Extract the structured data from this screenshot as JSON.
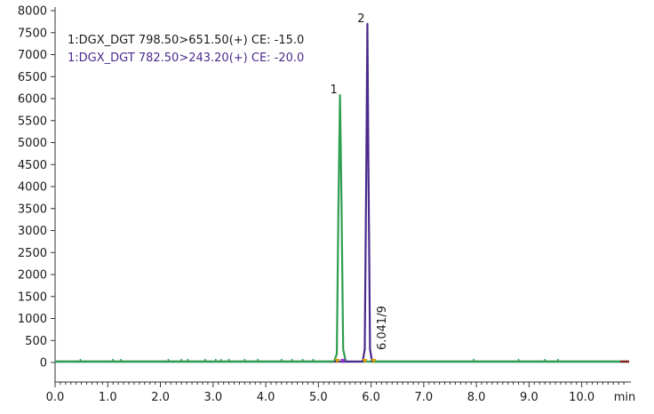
{
  "chart_data": {
    "type": "line",
    "xlabel": "min",
    "ylabel": "",
    "xlim": [
      0.0,
      10.9
    ],
    "ylim": [
      0,
      8000
    ],
    "x_ticks": [
      "0.0",
      "1.0",
      "2.0",
      "3.0",
      "4.0",
      "5.0",
      "6.0",
      "7.0",
      "8.0",
      "9.0",
      "10.0"
    ],
    "y_ticks": [
      "0",
      "500",
      "1000",
      "1500",
      "2000",
      "2500",
      "3000",
      "3500",
      "4000",
      "4500",
      "5000",
      "5500",
      "6000",
      "6500",
      "7000",
      "7500",
      "8000"
    ],
    "grid": false,
    "legend_position": "top-left",
    "series": [
      {
        "name": "1:DGX_DGT 798.50>651.50(+) CE: -15.0",
        "color": "#2e9e4f",
        "points": [
          [
            0.0,
            20
          ],
          [
            5.3,
            20
          ],
          [
            5.35,
            200
          ],
          [
            5.38,
            3500
          ],
          [
            5.41,
            6080
          ],
          [
            5.44,
            3500
          ],
          [
            5.47,
            300
          ],
          [
            5.52,
            20
          ],
          [
            10.9,
            20
          ]
        ]
      },
      {
        "name": "1:DGX_DGT 782.50>243.20(+) CE: -20.0",
        "color": "#4a2a8c",
        "points": [
          [
            0.0,
            20
          ],
          [
            5.84,
            20
          ],
          [
            5.88,
            300
          ],
          [
            5.91,
            4500
          ],
          [
            5.93,
            7700
          ],
          [
            5.95,
            4500
          ],
          [
            5.98,
            300
          ],
          [
            6.02,
            20
          ],
          [
            10.9,
            20
          ]
        ]
      }
    ],
    "peak_labels": [
      {
        "text": "1",
        "x": 5.41,
        "y": 6080
      },
      {
        "text": "2",
        "x": 5.93,
        "y": 7700
      }
    ],
    "annotations": [
      {
        "text": "6.041/9",
        "x": 6.04,
        "y": 0
      }
    ]
  }
}
